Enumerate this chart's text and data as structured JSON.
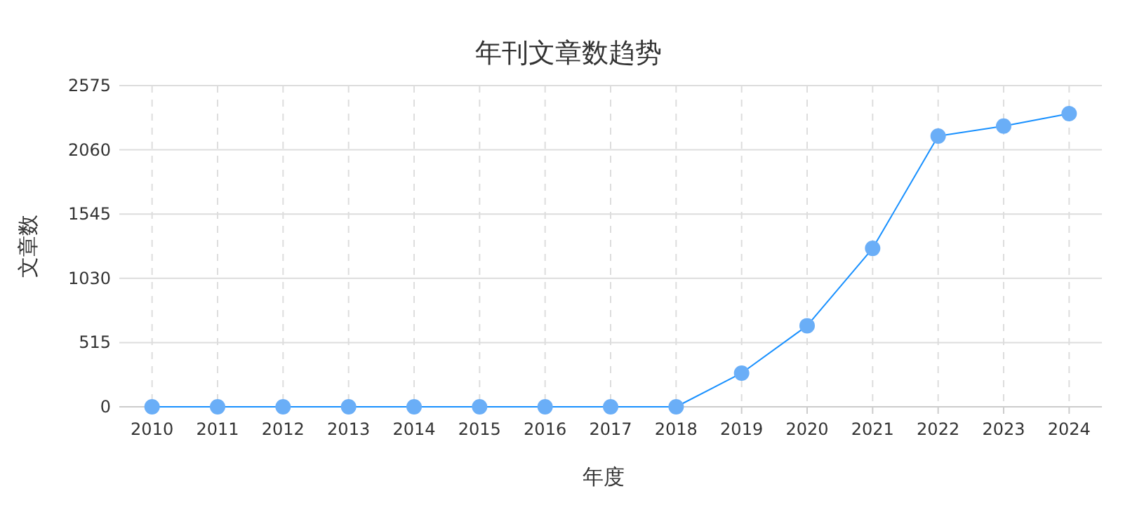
{
  "chart_data": {
    "type": "line",
    "title": "年刊文章数趋势",
    "xlabel": "年度",
    "ylabel": "文章数",
    "categories": [
      "2010",
      "2011",
      "2012",
      "2013",
      "2014",
      "2015",
      "2016",
      "2017",
      "2018",
      "2019",
      "2020",
      "2021",
      "2022",
      "2023",
      "2024"
    ],
    "series": [
      {
        "color": "#1890ff",
        "values": [
          0,
          0,
          0,
          0,
          0,
          0,
          0,
          0,
          0,
          270,
          650,
          1270,
          2170,
          2250,
          2350
        ]
      }
    ],
    "ylim": [
      0,
      2575
    ],
    "yticks": [
      0,
      515,
      1030,
      1545,
      2060,
      2575
    ],
    "grid": true,
    "marker": "circle",
    "line_style": "solid"
  }
}
